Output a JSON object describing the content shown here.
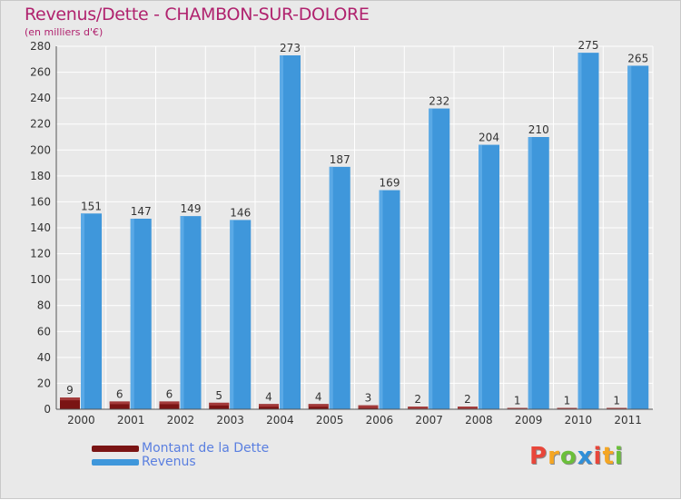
{
  "title": "Revenus/Dette - CHAMBON-SUR-DOLORE",
  "subtitle": "(en milliers d'€)",
  "colors": {
    "dette": "#7a1414",
    "revenus": "#3f97db",
    "title": "#b0226e",
    "legend_text": "#5a7fe0"
  },
  "legend": [
    {
      "label": "Montant de la Dette",
      "color": "#7a1414"
    },
    {
      "label": "Revenus",
      "color": "#3f97db"
    }
  ],
  "logo": {
    "letters": [
      "P",
      "r",
      "o",
      "x",
      "i",
      "t",
      "i"
    ],
    "colors": [
      "#e8463a",
      "#f5a623",
      "#6bbf3b",
      "#2f8fd8",
      "#e8463a",
      "#f5a623",
      "#6bbf3b"
    ]
  },
  "chart_data": {
    "type": "bar",
    "title": "Revenus/Dette - CHAMBON-SUR-DOLORE",
    "subtitle": "(en milliers d'€)",
    "categories": [
      "2000",
      "2001",
      "2002",
      "2003",
      "2004",
      "2005",
      "2006",
      "2007",
      "2008",
      "2009",
      "2010",
      "2011"
    ],
    "series": [
      {
        "name": "Montant de la Dette",
        "values": [
          9,
          6,
          6,
          5,
          4,
          4,
          3,
          2,
          2,
          1,
          1,
          1
        ]
      },
      {
        "name": "Revenus",
        "values": [
          151,
          147,
          149,
          146,
          273,
          187,
          169,
          232,
          204,
          210,
          275,
          265
        ]
      }
    ],
    "ylim": [
      0,
      280
    ],
    "yticks": [
      0,
      20,
      40,
      60,
      80,
      100,
      120,
      140,
      160,
      180,
      200,
      220,
      240,
      260,
      280
    ],
    "grid": true,
    "legend_position": "bottom-left"
  }
}
